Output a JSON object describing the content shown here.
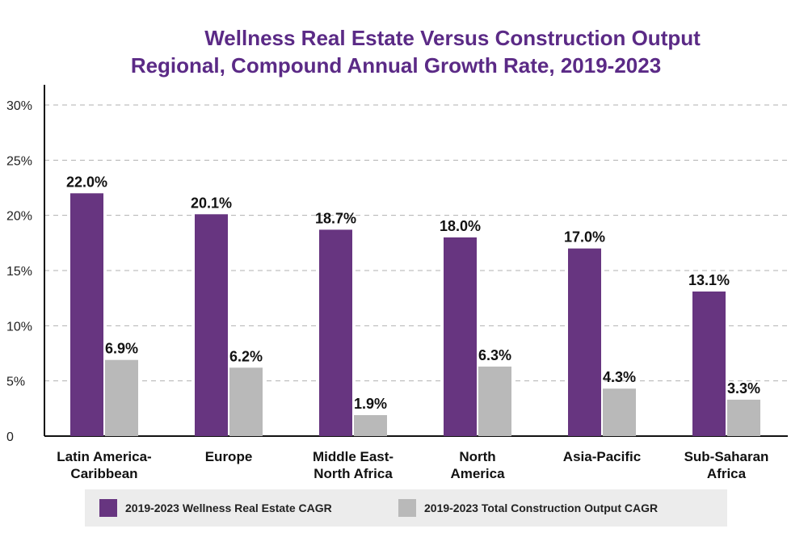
{
  "title": "Wellness Real Estate Versus Construction Output",
  "subtitle": "Regional, Compound Annual Growth Rate, 2019-2023",
  "chart_data": {
    "type": "bar",
    "title": "Wellness Real Estate Versus Construction Output",
    "subtitle": "Regional, Compound Annual Growth Rate, 2019-2023",
    "categories": [
      [
        "Latin America-",
        "Caribbean"
      ],
      [
        "Europe"
      ],
      [
        "Middle East-",
        "North Africa"
      ],
      [
        "North",
        "America"
      ],
      [
        "Asia-Pacific"
      ],
      [
        "Sub-Saharan",
        "Africa"
      ]
    ],
    "series": [
      {
        "name": "2019-2023 Wellness Real Estate CAGR",
        "color": "#673580",
        "values": [
          22.0,
          20.1,
          18.7,
          18.0,
          17.0,
          13.1
        ],
        "labels": [
          "22.0%",
          "20.1%",
          "18.7%",
          "18.0%",
          "17.0%",
          "13.1%"
        ]
      },
      {
        "name": "2019-2023 Total Construction Output CAGR",
        "color": "#b9b9b9",
        "values": [
          6.9,
          6.2,
          1.9,
          6.3,
          4.3,
          3.3
        ],
        "labels": [
          "6.9%",
          "6.2%",
          "1.9%",
          "6.3%",
          "4.3%",
          "3.3%"
        ]
      }
    ],
    "ylim": [
      0,
      30
    ],
    "yticks": [
      0,
      5,
      10,
      15,
      20,
      25,
      30
    ],
    "ytick_labels": [
      "0",
      "5%",
      "10%",
      "15%",
      "20%",
      "25%",
      "30%"
    ],
    "grid": "dashed-horizontal",
    "legend_position": "bottom"
  }
}
